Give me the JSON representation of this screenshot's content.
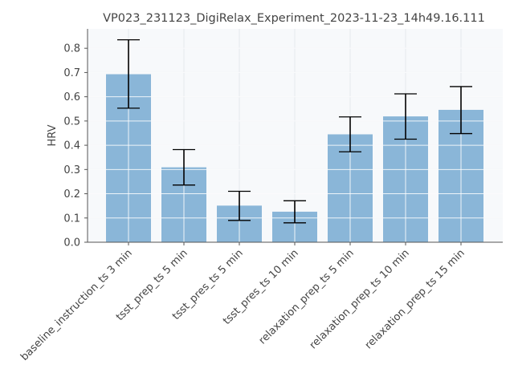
{
  "chart_data": {
    "type": "bar",
    "title": "VP023_231123_DigiRelax_Experiment_2023-11-23_14h49.16.111",
    "xlabel": "",
    "ylabel": "HRV",
    "categories": [
      "baseline_instruction_ts 3 min",
      "tsst_prep_ts 5 min",
      "tsst_pres_ts 5 min",
      "tsst_pres_ts 10 min",
      "relaxation_prep_ts 5 min",
      "relaxation_prep_ts 10 min",
      "relaxation_prep_ts 15 min"
    ],
    "values": [
      0.693,
      0.309,
      0.151,
      0.126,
      0.445,
      0.519,
      0.546
    ],
    "error_low": [
      0.553,
      0.236,
      0.09,
      0.08,
      0.373,
      0.425,
      0.448
    ],
    "error_high": [
      0.835,
      0.382,
      0.21,
      0.171,
      0.517,
      0.612,
      0.642
    ],
    "ylim": [
      0,
      0.88
    ],
    "yticks": [
      "0.0",
      "0.1",
      "0.2",
      "0.3",
      "0.4",
      "0.5",
      "0.6",
      "0.7",
      "0.8"
    ],
    "grid": true,
    "colors": {
      "bar": "#8ab6d8",
      "error": "#000000",
      "background": "#f7f9fb",
      "grid": "#e6e9ee",
      "axis": "#555555"
    }
  }
}
